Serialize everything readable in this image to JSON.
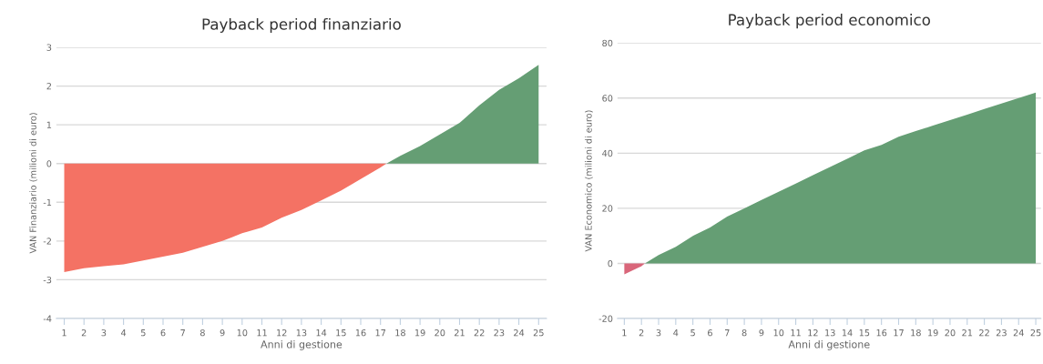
{
  "chart_data": [
    {
      "type": "area",
      "title": "Payback period finanziario",
      "xlabel": "Anni di gestione",
      "ylabel": "VAN Finanziario (milioni di euro)",
      "xlim": [
        0.6,
        25.4
      ],
      "xticks": [
        1,
        2,
        3,
        4,
        5,
        6,
        7,
        8,
        9,
        10,
        11,
        12,
        13,
        14,
        15,
        16,
        17,
        18,
        19,
        20,
        21,
        22,
        23,
        24,
        25
      ],
      "ylim": [
        -4,
        3
      ],
      "yticks": [
        -4,
        -3,
        -2,
        -1,
        0,
        1,
        2,
        3
      ],
      "grid": "y",
      "series": [
        {
          "color": "#f47264",
          "x": [
            1,
            2,
            3,
            4,
            5,
            6,
            7,
            8,
            9,
            10,
            11,
            12,
            13,
            14,
            15,
            16,
            17,
            17.3
          ],
          "values": [
            -2.8,
            -2.7,
            -2.65,
            -2.6,
            -2.5,
            -2.4,
            -2.3,
            -2.15,
            -2.0,
            -1.8,
            -1.65,
            -1.4,
            -1.2,
            -0.95,
            -0.7,
            -0.4,
            -0.1,
            0
          ]
        },
        {
          "color": "#659e74",
          "x": [
            17.3,
            18,
            19,
            20,
            21,
            22,
            23,
            24,
            25
          ],
          "values": [
            0,
            0.2,
            0.45,
            0.75,
            1.05,
            1.5,
            1.9,
            2.2,
            2.55
          ]
        }
      ]
    },
    {
      "type": "area",
      "title": "Payback period economico",
      "xlabel": "Anni di gestione",
      "ylabel": "VAN Economico (milioni di euro)",
      "xlim": [
        0.6,
        25.3
      ],
      "xticks": [
        1,
        2,
        3,
        4,
        5,
        6,
        7,
        8,
        9,
        10,
        11,
        12,
        13,
        14,
        15,
        16,
        17,
        18,
        19,
        20,
        21,
        22,
        23,
        24,
        25
      ],
      "ylim": [
        -20,
        80
      ],
      "yticks": [
        -20,
        0,
        20,
        40,
        60,
        80
      ],
      "grid": "y",
      "series": [
        {
          "color": "#d9667a",
          "x": [
            1,
            2,
            2.2
          ],
          "values": [
            -4,
            -1,
            0
          ]
        },
        {
          "color": "#659e74",
          "x": [
            2.2,
            3,
            4,
            5,
            6,
            7,
            8,
            9,
            10,
            11,
            12,
            13,
            14,
            15,
            16,
            17,
            18,
            19,
            20,
            21,
            22,
            23,
            24,
            25
          ],
          "values": [
            0,
            3,
            6,
            10,
            13,
            17,
            20,
            23,
            26,
            29,
            32,
            35,
            38,
            41,
            43,
            46,
            48,
            50,
            52,
            54,
            56,
            58,
            60,
            62
          ]
        }
      ]
    }
  ]
}
